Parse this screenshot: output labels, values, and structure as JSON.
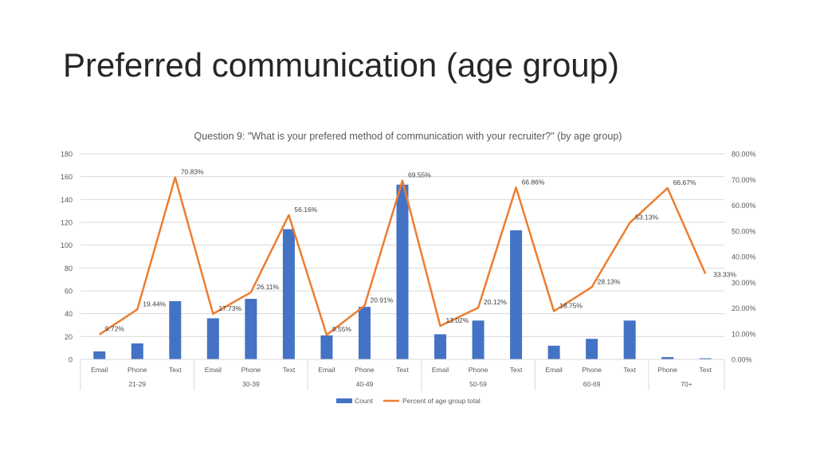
{
  "slide": {
    "title": "Preferred communication (age group)"
  },
  "chart_data": {
    "type": "bar",
    "title": "Question 9: \"What is your prefered method of communication with your recruiter?\" (by age group)",
    "groups": [
      {
        "label": "21-29",
        "categories": [
          "Email",
          "Phone",
          "Text"
        ]
      },
      {
        "label": "30-39",
        "categories": [
          "Email",
          "Phone",
          "Text"
        ]
      },
      {
        "label": "40-49",
        "categories": [
          "Email",
          "Phone",
          "Text"
        ]
      },
      {
        "label": "50-59",
        "categories": [
          "Email",
          "Phone",
          "Text"
        ]
      },
      {
        "label": "60-69",
        "categories": [
          "Email",
          "Phone",
          "Text"
        ]
      },
      {
        "label": "70+",
        "categories": [
          "Phone",
          "Text"
        ]
      }
    ],
    "series": [
      {
        "name": "Count",
        "type": "bar",
        "axis": "left",
        "color": "#4472C4",
        "values": [
          7,
          14,
          51,
          36,
          53,
          114,
          21,
          46,
          153,
          22,
          34,
          113,
          12,
          18,
          34,
          2,
          1
        ]
      },
      {
        "name": "Percent of age group total",
        "type": "line",
        "axis": "right",
        "color": "#ED7D31",
        "values": [
          9.72,
          19.44,
          70.83,
          17.73,
          26.11,
          56.16,
          9.55,
          20.91,
          69.55,
          13.02,
          20.12,
          66.86,
          18.75,
          28.13,
          53.13,
          66.67,
          33.33
        ],
        "labels": [
          "9.72%",
          "19.44%",
          "70.83%",
          "17.73%",
          "26.11%",
          "56.16%",
          "9.55%",
          "20.91%",
          "69.55%",
          "13.02%",
          "20.12%",
          "66.86%",
          "18.75%",
          "28.13%",
          "53.13%",
          "66.67%",
          "33.33%"
        ]
      }
    ],
    "y_left": {
      "min": 0,
      "max": 180,
      "ticks": [
        "0",
        "20",
        "40",
        "60",
        "80",
        "100",
        "120",
        "140",
        "160",
        "180"
      ]
    },
    "y_right": {
      "min": 0,
      "max": 80,
      "ticks": [
        "0.00%",
        "10.00%",
        "20.00%",
        "30.00%",
        "40.00%",
        "50.00%",
        "60.00%",
        "70.00%",
        "80.00%"
      ]
    },
    "grid": true,
    "legend_position": "bottom"
  }
}
